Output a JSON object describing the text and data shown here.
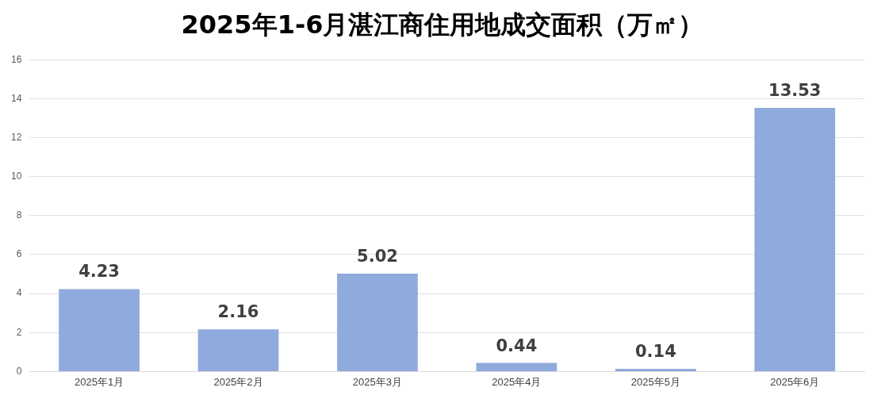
{
  "chart_data": {
    "type": "bar",
    "title": "2025年1-6月湛江商住用地成交面积（万㎡）",
    "categories": [
      "2025年1月",
      "2025年2月",
      "2025年3月",
      "2025年4月",
      "2025年5月",
      "2025年6月"
    ],
    "values": [
      4.23,
      2.16,
      5.02,
      0.44,
      0.14,
      13.53
    ],
    "color": "#8faadc",
    "ylim": [
      0,
      16
    ],
    "yticks": [
      0,
      2,
      4,
      6,
      8,
      10,
      12,
      14,
      16
    ],
    "grid": "y",
    "data_labels": true
  }
}
